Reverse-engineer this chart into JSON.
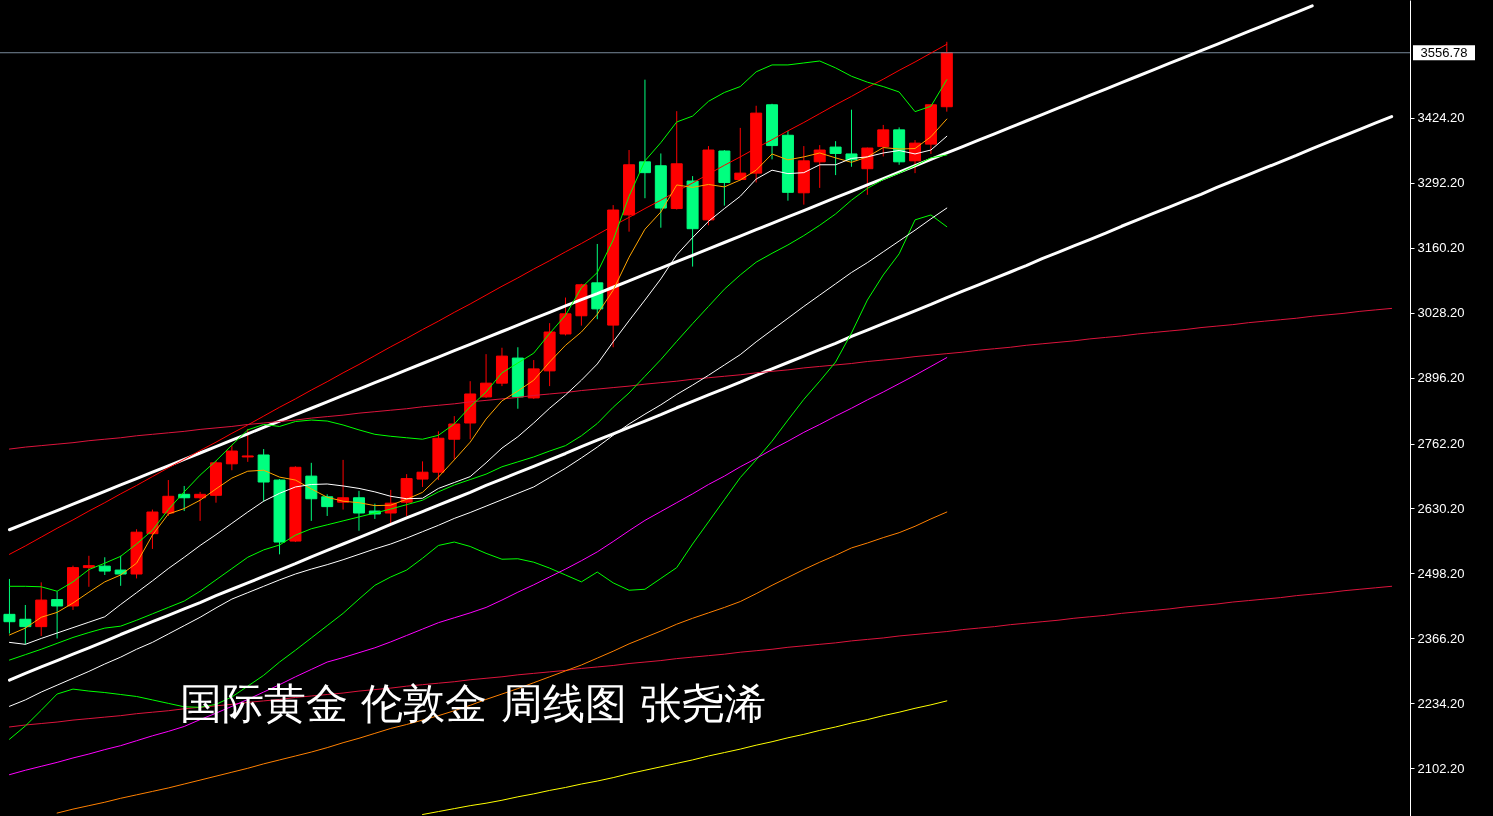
{
  "chart_data": {
    "type": "candlestick",
    "title": "国际黄金  伦敦金 周线图 张尧浠",
    "categories": [
      null,
      null,
      null,
      null,
      null,
      null,
      null,
      null,
      null,
      null,
      null,
      null,
      null,
      null,
      null,
      null,
      null,
      null,
      null,
      null,
      null,
      null,
      null,
      null,
      null,
      null,
      null,
      null,
      null,
      null,
      null,
      null,
      null,
      null,
      null,
      null,
      null,
      null,
      null,
      null,
      null,
      null,
      null,
      null,
      null,
      null,
      null,
      null,
      null,
      null,
      null,
      null,
      null,
      null,
      null,
      null,
      null,
      null,
      null,
      null,
      null,
      null,
      null,
      null,
      null,
      null,
      null,
      null,
      null,
      null,
      null,
      null,
      null,
      null,
      null,
      null,
      null,
      null,
      null,
      null,
      null,
      null,
      null,
      null,
      null,
      null,
      null,
      null
    ],
    "ohlc": [
      [
        2415,
        2487,
        2376,
        2400
      ],
      [
        2405,
        2434,
        2354,
        2390
      ],
      [
        2390,
        2480,
        2371,
        2444
      ],
      [
        2445,
        2462,
        2366,
        2432
      ],
      [
        2432,
        2514,
        2424,
        2510
      ],
      [
        2510,
        2534,
        2471,
        2514
      ],
      [
        2513,
        2531,
        2495,
        2503
      ],
      [
        2505,
        2534,
        2473,
        2497
      ],
      [
        2497,
        2588,
        2488,
        2582
      ],
      [
        2579,
        2628,
        2548,
        2623
      ],
      [
        2621,
        2688,
        2615,
        2655
      ],
      [
        2659,
        2676,
        2625,
        2652
      ],
      [
        2652,
        2664,
        2605,
        2659
      ],
      [
        2657,
        2727,
        2642,
        2723
      ],
      [
        2721,
        2759,
        2708,
        2747
      ],
      [
        2735,
        2792,
        2725,
        2737
      ],
      [
        2739,
        2751,
        2644,
        2684
      ],
      [
        2688,
        2690,
        2537,
        2562
      ],
      [
        2564,
        2716,
        2562,
        2714
      ],
      [
        2696,
        2723,
        2605,
        2650
      ],
      [
        2654,
        2659,
        2615,
        2634
      ],
      [
        2643,
        2729,
        2628,
        2652
      ],
      [
        2652,
        2666,
        2585,
        2621
      ],
      [
        2625,
        2640,
        2609,
        2619
      ],
      [
        2621,
        2668,
        2600,
        2641
      ],
      [
        2643,
        2700,
        2615,
        2691
      ],
      [
        2690,
        2726,
        2674,
        2704
      ],
      [
        2704,
        2787,
        2688,
        2773
      ],
      [
        2771,
        2818,
        2730,
        2802
      ],
      [
        2804,
        2889,
        2771,
        2863
      ],
      [
        2857,
        2944,
        2855,
        2885
      ],
      [
        2885,
        2957,
        2879,
        2940
      ],
      [
        2936,
        2958,
        2833,
        2857
      ],
      [
        2855,
        2932,
        2853,
        2914
      ],
      [
        2910,
        3007,
        2879,
        2989
      ],
      [
        2985,
        3059,
        2982,
        3026
      ],
      [
        3022,
        3087,
        3002,
        3085
      ],
      [
        3089,
        3168,
        3015,
        3036
      ],
      [
        3003,
        3247,
        2958,
        3237
      ],
      [
        3227,
        3359,
        3193,
        3329
      ],
      [
        3335,
        3502,
        3261,
        3313
      ],
      [
        3327,
        3352,
        3201,
        3241
      ],
      [
        3240,
        3438,
        3238,
        3331
      ],
      [
        3296,
        3306,
        3122,
        3199
      ],
      [
        3217,
        3367,
        3206,
        3359
      ],
      [
        3357,
        3359,
        3246,
        3293
      ],
      [
        3299,
        3404,
        3297,
        3312
      ],
      [
        3312,
        3449,
        3293,
        3434
      ],
      [
        3451,
        3453,
        3340,
        3368
      ],
      [
        3389,
        3398,
        3256,
        3273
      ],
      [
        3272,
        3367,
        3248,
        3337
      ],
      [
        3335,
        3369,
        3282,
        3359
      ],
      [
        3365,
        3377,
        3308,
        3352
      ],
      [
        3351,
        3441,
        3325,
        3339
      ],
      [
        3321,
        3364,
        3268,
        3363
      ],
      [
        3366,
        3410,
        3346,
        3400
      ],
      [
        3400,
        3405,
        3329,
        3335
      ],
      [
        3337,
        3379,
        3312,
        3373
      ],
      [
        3371,
        3452,
        3351,
        3451
      ],
      [
        3447,
        3579,
        3437,
        3556.78
      ],
      null,
      null,
      null,
      null,
      null,
      null,
      null,
      null,
      null,
      null,
      null,
      null,
      null,
      null,
      null,
      null,
      null,
      null,
      null,
      null,
      null,
      null,
      null,
      null,
      null,
      null,
      null,
      null
    ],
    "colors": [
      "#00ff7f",
      "#00ff7f",
      "#ff0000",
      "#00ff7f",
      "#ff0000",
      "#ff0000",
      "#00ff7f",
      "#00ff7f",
      "#ff0000",
      "#ff0000",
      "#ff0000",
      "#00ff7f",
      "#ff0000",
      "#ff0000",
      "#ff0000",
      "#ff0000",
      "#00ff7f",
      "#00ff7f",
      "#ff0000",
      "#00ff7f",
      "#00ff7f",
      "#ff0000",
      "#00ff7f",
      "#00ff7f",
      "#ff0000",
      "#ff0000",
      "#ff0000",
      "#ff0000",
      "#ff0000",
      "#ff0000",
      "#ff0000",
      "#ff0000",
      "#00ff7f",
      "#ff0000",
      "#ff0000",
      "#ff0000",
      "#ff0000",
      "#00ff7f",
      "#ff0000",
      "#ff0000",
      "#00ff7f",
      "#00ff7f",
      "#ff0000",
      "#00ff7f",
      "#ff0000",
      "#00ff7f",
      "#ff0000",
      "#ff0000",
      "#00ff7f",
      "#00ff7f",
      "#ff0000",
      "#ff0000",
      "#00ff7f",
      "#00ff7f",
      "#ff0000",
      "#ff0000",
      "#00ff7f",
      "#ff0000",
      "#ff0000",
      "#ff0000",
      null,
      null,
      null,
      null,
      null,
      null,
      null,
      null,
      null,
      null,
      null,
      null,
      null,
      null,
      null,
      null,
      null,
      null,
      null,
      null,
      null,
      null,
      null,
      null,
      null,
      null,
      null,
      null
    ],
    "series": [
      {
        "type": "line",
        "color": "#ffffff",
        "values": [
          2587,
          2600,
          2613,
          2626,
          2639,
          2652,
          2665,
          2678,
          2691,
          2704,
          2717,
          2730,
          2743,
          2756,
          2769,
          2782,
          2795,
          2808,
          2821,
          2834,
          2847,
          2860,
          2873,
          2886,
          2899,
          2912,
          2925,
          2938,
          2951,
          2964,
          2977,
          2990,
          3003,
          3016,
          3029,
          3042,
          3055,
          3067,
          3080,
          3093,
          3106,
          3119,
          3132,
          3145,
          3158,
          3171,
          3184,
          3197,
          3210,
          3223,
          3236,
          3249,
          3262,
          3275,
          3288,
          3301,
          3314,
          3327,
          3340,
          3353,
          3366,
          3379,
          3392,
          3405,
          3418,
          3431,
          3444,
          3457,
          3470,
          3483,
          3496,
          3509,
          3522,
          3535,
          3548,
          3561,
          3574,
          3587,
          3600,
          3613,
          3626,
          3639,
          3652,
          null,
          null,
          null,
          null,
          null
        ]
      },
      {
        "type": "line",
        "color": "#ffffff",
        "values": [
          2281,
          2295,
          2308,
          2321,
          2334,
          2347,
          2360,
          2374,
          2387,
          2400,
          2413,
          2426,
          2439,
          2453,
          2466,
          2479,
          2492,
          2505,
          2518,
          2532,
          2545,
          2558,
          2571,
          2584,
          2598,
          2611,
          2624,
          2637,
          2650,
          2663,
          2677,
          2690,
          2703,
          2716,
          2729,
          2742,
          2756,
          2769,
          2782,
          2795,
          2808,
          2821,
          2835,
          2848,
          2861,
          2874,
          2887,
          2901,
          2914,
          2927,
          2940,
          2953,
          2966,
          2980,
          2993,
          3006,
          3019,
          3032,
          3045,
          3059,
          3072,
          3085,
          3098,
          3111,
          3124,
          3138,
          3151,
          3164,
          3177,
          3190,
          3204,
          3217,
          3230,
          3243,
          3256,
          3269,
          3283,
          3296,
          3309,
          3322,
          3335,
          3348,
          3362,
          3375,
          3388,
          3401,
          3414,
          3427
        ]
      },
      {
        "type": "line",
        "color": "#ff0000",
        "values": [
          2537,
          2554,
          2572,
          2590,
          2607,
          2625,
          2642,
          2660,
          2677,
          2695,
          2713,
          2730,
          2748,
          2765,
          2783,
          2800,
          2818,
          2836,
          2853,
          2871,
          2888,
          2906,
          2923,
          2941,
          2959,
          2976,
          2994,
          3011,
          3029,
          3046,
          3064,
          3082,
          3099,
          3117,
          3134,
          3152,
          3169,
          3187,
          3205,
          3222,
          3240,
          3257,
          3275,
          3292,
          3310,
          3328,
          3345,
          3363,
          3380,
          3398,
          3415,
          3433,
          3451,
          3468,
          3486,
          3503,
          3521,
          3538,
          3556,
          3574,
          null,
          null,
          null,
          null,
          null,
          null,
          null,
          null,
          null,
          null,
          null,
          null,
          null,
          null,
          null,
          null,
          null,
          null,
          null,
          null,
          null,
          null,
          null,
          null,
          null,
          null,
          null,
          null
        ]
      },
      {
        "type": "line",
        "color": "#dc143c",
        "values": [
          2751,
          2755,
          2758,
          2761,
          2764,
          2768,
          2771,
          2774,
          2778,
          2781,
          2784,
          2787,
          2791,
          2794,
          2797,
          2801,
          2804,
          2807,
          2810,
          2814,
          2817,
          2820,
          2824,
          2827,
          2830,
          2833,
          2837,
          2840,
          2843,
          2847,
          2850,
          2853,
          2856,
          2860,
          2863,
          2866,
          2870,
          2873,
          2876,
          2879,
          2883,
          2886,
          2889,
          2893,
          2896,
          2899,
          2902,
          2906,
          2909,
          2912,
          2916,
          2919,
          2922,
          2925,
          2929,
          2932,
          2935,
          2939,
          2942,
          2945,
          2948,
          2952,
          2955,
          2958,
          2962,
          2965,
          2968,
          2971,
          2975,
          2978,
          2981,
          2985,
          2988,
          2991,
          2994,
          2998,
          3001,
          3004,
          3008,
          3011,
          3014,
          3017,
          3021,
          3024,
          3027,
          3031,
          3034,
          3037
        ]
      },
      {
        "type": "line",
        "color": "#dc143c",
        "values": [
          2186,
          2190,
          2193,
          2196,
          2200,
          2203,
          2206,
          2209,
          2213,
          2216,
          2219,
          2223,
          2226,
          2229,
          2232,
          2236,
          2239,
          2242,
          2246,
          2249,
          2252,
          2255,
          2259,
          2262,
          2265,
          2269,
          2272,
          2275,
          2278,
          2282,
          2285,
          2288,
          2292,
          2295,
          2298,
          2301,
          2305,
          2308,
          2311,
          2315,
          2318,
          2321,
          2325,
          2328,
          2331,
          2334,
          2338,
          2341,
          2344,
          2348,
          2351,
          2354,
          2357,
          2361,
          2364,
          2367,
          2371,
          2374,
          2377,
          2380,
          2384,
          2387,
          2390,
          2394,
          2397,
          2400,
          2403,
          2407,
          2410,
          2413,
          2417,
          2420,
          2423,
          2426,
          2430,
          2433,
          2436,
          2440,
          2443,
          2446,
          2449,
          2453,
          2456,
          2459,
          2463,
          2466,
          2469,
          2472
        ]
      },
      {
        "type": "line",
        "color": "#00ff00",
        "values": [
          2472,
          2472,
          2471,
          2462,
          2481,
          2506,
          2519,
          2533,
          2558,
          2586,
          2628,
          2664,
          2698,
          2727,
          2759,
          2790,
          2801,
          2797,
          2807,
          2810,
          2808,
          2800,
          2790,
          2781,
          2777,
          2774,
          2771,
          2779,
          2802,
          2837,
          2867,
          2906,
          2926,
          2946,
          2986,
          3023,
          3079,
          3110,
          3176,
          3265,
          3337,
          3374,
          3416,
          3428,
          3458,
          3476,
          3488,
          3518,
          3532,
          3532,
          3536,
          3540,
          3526,
          3509,
          3497,
          3488,
          3477,
          3437,
          3448,
          3502,
          null,
          null,
          null,
          null,
          null,
          null,
          null,
          null,
          null,
          null,
          null,
          null,
          null,
          null,
          null,
          null,
          null,
          null,
          null,
          null,
          null,
          null,
          null,
          null,
          null,
          null,
          null,
          null
        ]
      },
      {
        "type": "line",
        "color": "#00ff00",
        "values": [
          2322,
          2333,
          2344,
          2356,
          2368,
          2378,
          2387,
          2391,
          2403,
          2416,
          2429,
          2442,
          2462,
          2485,
          2508,
          2531,
          2546,
          2556,
          2576,
          2589,
          2597,
          2605,
          2613,
          2621,
          2629,
          2638,
          2647,
          2664,
          2678,
          2689,
          2700,
          2715,
          2725,
          2735,
          2747,
          2758,
          2778,
          2803,
          2836,
          2865,
          2899,
          2933,
          2970,
          3006,
          3041,
          3076,
          3105,
          3131,
          3149,
          3166,
          3185,
          3206,
          3229,
          3257,
          3281,
          3299,
          3312,
          3327,
          3343,
          3349,
          null,
          null,
          null,
          null,
          null,
          null,
          null,
          null,
          null,
          null,
          null,
          null,
          null,
          null,
          null,
          null,
          null,
          null,
          null,
          null,
          null,
          null,
          null,
          null,
          null,
          null,
          null,
          null
        ]
      },
      {
        "type": "line",
        "color": "#00ff00",
        "values": [
          2161,
          2188,
          2220,
          2253,
          2263,
          2259,
          2256,
          2252,
          2248,
          2241,
          2234,
          2227,
          2226,
          2232,
          2247,
          2269,
          2291,
          2318,
          2342,
          2367,
          2392,
          2417,
          2446,
          2474,
          2491,
          2505,
          2529,
          2555,
          2562,
          2553,
          2539,
          2527,
          2528,
          2521,
          2509,
          2495,
          2481,
          2501,
          2479,
          2464,
          2466,
          2488,
          2510,
          2558,
          2603,
          2648,
          2693,
          2729,
          2767,
          2810,
          2852,
          2889,
          2928,
          2987,
          3054,
          3105,
          3148,
          3217,
          3227,
          3203,
          null,
          null,
          null,
          null,
          null,
          null,
          null,
          null,
          null,
          null,
          null,
          null,
          null,
          null,
          null,
          null,
          null,
          null,
          null,
          null,
          null,
          null,
          null,
          null,
          null,
          null,
          null,
          null
        ]
      },
      {
        "type": "line",
        "color": "#ffa500",
        "values": [
          2373,
          2387,
          2409,
          2419,
          2438,
          2460,
          2481,
          2495,
          2519,
          2576,
          2619,
          2630,
          2647,
          2670,
          2692,
          2706,
          2708,
          2694,
          2688,
          2670,
          2653,
          2645,
          2642,
          2636,
          2637,
          2649,
          2663,
          2694,
          2729,
          2765,
          2812,
          2849,
          2869,
          2891,
          2928,
          2962,
          2989,
          3025,
          3074,
          3141,
          3198,
          3233,
          3288,
          3283,
          3289,
          3284,
          3298,
          3318,
          3351,
          3339,
          3345,
          3353,
          3343,
          3334,
          3345,
          3364,
          3361,
          3362,
          3386,
          3422,
          null,
          null,
          null,
          null,
          null,
          null,
          null,
          null,
          null,
          null,
          null,
          null,
          null,
          null,
          null,
          null,
          null,
          null,
          null,
          null,
          null,
          null,
          null,
          null,
          null,
          null,
          null,
          null
        ]
      },
      {
        "type": "line",
        "color": "#ffffff",
        "values": [
          2358,
          2354,
          2366,
          2377,
          2388,
          2399,
          2410,
          2435,
          2459,
          2483,
          2508,
          2531,
          2555,
          2577,
          2600,
          2623,
          2645,
          2661,
          2674,
          2679,
          2680,
          2676,
          2671,
          2664,
          2655,
          2650,
          2651,
          2671,
          2683,
          2695,
          2723,
          2753,
          2776,
          2804,
          2834,
          2861,
          2891,
          2924,
          2969,
          3012,
          3054,
          3097,
          3146,
          3181,
          3214,
          3240,
          3265,
          3300,
          3318,
          3311,
          3313,
          3329,
          3329,
          3342,
          3345,
          3353,
          3358,
          3351,
          3359,
          3387,
          null,
          null,
          null,
          null,
          null,
          null,
          null,
          null,
          null,
          null,
          null,
          null,
          null,
          null,
          null,
          null,
          null,
          null,
          null,
          null,
          null,
          null,
          null,
          null,
          null,
          null,
          null,
          null
        ]
      },
      {
        "type": "line",
        "color": "#ffffff",
        "values": [
          2228,
          2241,
          2257,
          2271,
          2285,
          2299,
          2314,
          2328,
          2344,
          2358,
          2375,
          2392,
          2409,
          2428,
          2446,
          2459,
          2472,
          2485,
          2497,
          2507,
          2516,
          2526,
          2537,
          2548,
          2558,
          2570,
          2583,
          2596,
          2610,
          2622,
          2635,
          2648,
          2661,
          2674,
          2693,
          2712,
          2733,
          2755,
          2779,
          2802,
          2822,
          2841,
          2862,
          2881,
          2901,
          2922,
          2943,
          2969,
          2993,
          3017,
          3041,
          3064,
          3087,
          3110,
          3130,
          3152,
          3174,
          3196,
          3219,
          3241,
          null,
          null,
          null,
          null,
          null,
          null,
          null,
          null,
          null,
          null,
          null,
          null,
          null,
          null,
          null,
          null,
          null,
          null,
          null,
          null,
          null,
          null,
          null,
          null,
          null,
          null,
          null,
          null
        ]
      },
      {
        "type": "line",
        "color": "#ff00ff",
        "values": [
          2089,
          2098,
          2106,
          2114,
          2123,
          2131,
          2140,
          2148,
          2158,
          2168,
          2177,
          2187,
          2201,
          2214,
          2228,
          2242,
          2257,
          2272,
          2288,
          2303,
          2318,
          2327,
          2337,
          2347,
          2359,
          2372,
          2385,
          2398,
          2408,
          2418,
          2429,
          2444,
          2460,
          2475,
          2491,
          2507,
          2524,
          2542,
          2563,
          2585,
          2606,
          2624,
          2642,
          2660,
          2679,
          2696,
          2715,
          2732,
          2750,
          2767,
          2785,
          2801,
          2818,
          2834,
          2851,
          2867,
          2884,
          2901,
          2919,
          2937,
          null,
          null,
          null,
          null,
          null,
          null,
          null,
          null,
          null,
          null,
          null,
          null,
          null,
          null,
          null,
          null,
          null,
          null,
          null,
          null,
          null,
          null,
          null,
          null,
          null,
          null,
          null,
          null
        ]
      },
      {
        "type": "line",
        "color": "#ff8000",
        "values": [
          null,
          null,
          null,
          2011,
          2019,
          2026,
          2033,
          2041,
          2048,
          2055,
          2062,
          2070,
          2078,
          2086,
          2094,
          2102,
          2111,
          2119,
          2127,
          2135,
          2144,
          2154,
          2163,
          2173,
          2183,
          2191,
          2200,
          2209,
          2219,
          2230,
          2242,
          2253,
          2264,
          2276,
          2288,
          2300,
          2312,
          2326,
          2340,
          2355,
          2368,
          2381,
          2395,
          2407,
          2418,
          2429,
          2441,
          2457,
          2474,
          2490,
          2506,
          2521,
          2535,
          2550,
          2560,
          2571,
          2581,
          2594,
          2609,
          2623,
          null,
          null,
          null,
          null,
          null,
          null,
          null,
          null,
          null,
          null,
          null,
          null,
          null,
          null,
          null,
          null,
          null,
          null,
          null,
          null,
          null,
          null,
          null,
          null,
          null,
          null,
          null,
          null
        ]
      },
      {
        "type": "line",
        "color": "#ffff00",
        "values": [
          null,
          null,
          null,
          null,
          null,
          null,
          null,
          null,
          null,
          null,
          null,
          null,
          null,
          null,
          null,
          null,
          null,
          null,
          null,
          null,
          null,
          null,
          null,
          null,
          null,
          null,
          2008,
          2014,
          2020,
          2026,
          2031,
          2037,
          2044,
          2050,
          2057,
          2063,
          2070,
          2076,
          2083,
          2091,
          2098,
          2105,
          2112,
          2119,
          2127,
          2134,
          2141,
          2149,
          2156,
          2164,
          2171,
          2179,
          2186,
          2194,
          2201,
          2209,
          2216,
          2224,
          2231,
          2239,
          null,
          null,
          null,
          null,
          null,
          null,
          null,
          null,
          null,
          null,
          null,
          null,
          null,
          null,
          null,
          null,
          null,
          null,
          null,
          null,
          null,
          null,
          null,
          null,
          null,
          null,
          null,
          null
        ]
      }
    ],
    "ylim": [
      2005,
      3664
    ],
    "yticks": [
      {
        "value": 2102.2,
        "label": "2102.20"
      },
      {
        "value": 2234.2,
        "label": "2234.20"
      },
      {
        "value": 2366.2,
        "label": "2366.20"
      },
      {
        "value": 2498.2,
        "label": "2498.20"
      },
      {
        "value": 2630.2,
        "label": "2630.20"
      },
      {
        "value": 2762.2,
        "label": "2762.20"
      },
      {
        "value": 2896.2,
        "label": "2896.20"
      },
      {
        "value": 3028.2,
        "label": "3028.20"
      },
      {
        "value": 3160.2,
        "label": "3160.20"
      },
      {
        "value": 3292.2,
        "label": "3292.20"
      },
      {
        "value": 3424.2,
        "label": "3424.20"
      }
    ],
    "ref_lines": [
      {
        "axis": "y",
        "value": 3556.78,
        "label": "3556.78",
        "color": "#778899"
      }
    ],
    "tick_labels": "y"
  }
}
